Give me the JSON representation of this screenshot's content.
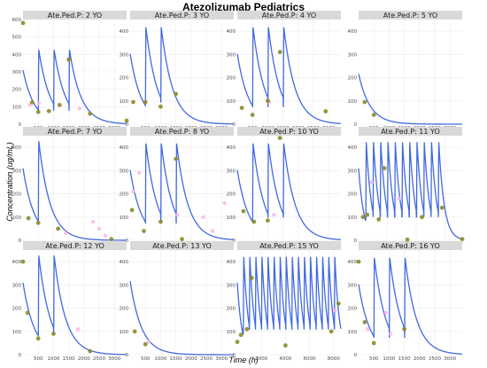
{
  "chart_data": {
    "type": "line",
    "title": "Atezolizumab Pediatrics",
    "xlabel": "Time (h)",
    "ylabel": "Concentration (ug/mL)",
    "colors": {
      "model_line": "#4169e1",
      "observed_points": "#8b8b2a",
      "simulated_points": "#ffb6e6",
      "strip_bg": "#d9d9d9"
    },
    "panels": [
      {
        "label": "Ate.Ped.P: 2 YO",
        "xlim": [
          0,
          3400
        ],
        "ylim": [
          0,
          600
        ],
        "xticks": [
          500,
          1000,
          1500,
          2000,
          2500,
          3000
        ],
        "yticks": [
          0,
          100,
          200,
          300,
          400,
          500,
          600
        ],
        "doses": [
          0,
          504,
          1008,
          1512
        ],
        "cmax": 430,
        "cmin": 80,
        "half_life": 260,
        "observed": [
          [
            0,
            580
          ],
          [
            300,
            125
          ],
          [
            500,
            70
          ],
          [
            850,
            75
          ],
          [
            1200,
            110
          ],
          [
            1500,
            370
          ],
          [
            2200,
            60
          ],
          [
            3400,
            20
          ]
        ],
        "simulated": [
          [
            220,
            110
          ],
          [
            520,
            120
          ],
          [
            1850,
            90
          ]
        ]
      },
      {
        "label": "Ate.Ped.P: 3 YO",
        "xlim": [
          0,
          3400
        ],
        "ylim": [
          0,
          450
        ],
        "xticks": [
          500,
          1000,
          1500,
          2000,
          2500,
          3000
        ],
        "yticks": [
          0,
          100,
          200,
          300,
          400
        ],
        "doses": [
          0,
          504,
          1008
        ],
        "cmax": 420,
        "cmin": 95,
        "half_life": 260,
        "observed": [
          [
            100,
            95
          ],
          [
            500,
            95
          ],
          [
            1000,
            75
          ],
          [
            1500,
            130
          ]
        ],
        "simulated": []
      },
      {
        "label": "Ate.Ped.P: 4 YO",
        "xlim": [
          0,
          3400
        ],
        "ylim": [
          0,
          450
        ],
        "xticks": [
          500,
          1000,
          1500,
          2000,
          2500,
          3000
        ],
        "yticks": [
          0,
          100,
          200,
          300,
          400
        ],
        "doses": [
          0,
          504,
          1008,
          1512
        ],
        "cmax": 420,
        "cmin": 75,
        "half_life": 260,
        "observed": [
          [
            150,
            70
          ],
          [
            500,
            40
          ],
          [
            1000,
            100
          ],
          [
            1400,
            310
          ],
          [
            2900,
            55
          ]
        ],
        "simulated": [
          [
            1050,
            95
          ]
        ]
      },
      {
        "label": "Ate.Ped.P: 5 YO",
        "xlim": [
          0,
          3400
        ],
        "ylim": [
          0,
          450
        ],
        "xticks": [
          500,
          1000,
          1500,
          2000,
          2500,
          3000
        ],
        "yticks": [
          0,
          100,
          200,
          300,
          400
        ],
        "doses": [
          0
        ],
        "cmax": 300,
        "cmin": 0,
        "half_life": 260,
        "observed": [
          [
            200,
            95
          ],
          [
            500,
            40
          ]
        ],
        "simulated": []
      },
      {
        "label": "Ate.Ped.P: 7 YO",
        "xlim": [
          0,
          3400
        ],
        "ylim": [
          0,
          450
        ],
        "xticks": [
          500,
          1000,
          1500,
          2000,
          2500,
          3000
        ],
        "yticks": [
          0,
          100,
          200,
          300,
          400
        ],
        "doses": [
          0,
          504
        ],
        "cmax": 430,
        "cmin": 85,
        "half_life": 260,
        "observed": [
          [
            180,
            95
          ],
          [
            500,
            75
          ],
          [
            1150,
            50
          ],
          [
            2900,
            5
          ]
        ],
        "simulated": [
          [
            1400,
            30
          ],
          [
            2300,
            80
          ],
          [
            2700,
            20
          ],
          [
            2500,
            50
          ]
        ]
      },
      {
        "label": "Ate.Ped.P: 8 YO",
        "xlim": [
          0,
          3400
        ],
        "ylim": [
          0,
          450
        ],
        "xticks": [
          500,
          1000,
          1500,
          2000,
          2500,
          3000
        ],
        "yticks": [
          0,
          100,
          200,
          300,
          400
        ],
        "doses": [
          0,
          504,
          1008,
          1512
        ],
        "cmax": 420,
        "cmin": 75,
        "half_life": 260,
        "observed": [
          [
            60,
            130
          ],
          [
            450,
            40
          ],
          [
            1000,
            80
          ],
          [
            1500,
            350
          ],
          [
            1700,
            5
          ]
        ],
        "simulated": [
          [
            100,
            210
          ],
          [
            300,
            290
          ],
          [
            1550,
            110
          ],
          [
            2400,
            100
          ],
          [
            2700,
            40
          ],
          [
            3100,
            160
          ]
        ]
      },
      {
        "label": "Ate.Ped.P: 10 YO",
        "xlim": [
          0,
          3400
        ],
        "ylim": [
          0,
          450
        ],
        "xticks": [
          500,
          1000,
          1500,
          2000,
          2500,
          3000
        ],
        "yticks": [
          0,
          100,
          200,
          300,
          400
        ],
        "doses": [
          0,
          504,
          1008,
          1512
        ],
        "cmax": 420,
        "cmin": 100,
        "half_life": 260,
        "observed": [
          [
            200,
            125
          ],
          [
            550,
            80
          ],
          [
            1000,
            85
          ],
          [
            1400,
            440
          ]
        ],
        "simulated": [
          [
            1200,
            110
          ]
        ]
      },
      {
        "label": "Ate.Ped.P: 11 YO",
        "xlim": [
          0,
          7200
        ],
        "ylim": [
          0,
          450
        ],
        "xticks": [
          2000,
          4000,
          6000
        ],
        "yticks": [
          0,
          100,
          200,
          300,
          400
        ],
        "doses": [
          0,
          504,
          1008,
          1512,
          2016,
          2520,
          3024,
          3528,
          4032,
          4536,
          5040,
          5544
        ],
        "cmax": 430,
        "cmin": 100,
        "half_life": 260,
        "observed": [
          [
            300,
            100
          ],
          [
            600,
            110
          ],
          [
            1400,
            90
          ],
          [
            1800,
            310
          ],
          [
            4400,
            100
          ],
          [
            5800,
            140
          ],
          [
            7200,
            5
          ]
        ],
        "simulated": [
          [
            900,
            250
          ],
          [
            2800,
            180
          ]
        ]
      },
      {
        "label": "Ate.Ped.P: 12 YO",
        "xlim": [
          0,
          3400
        ],
        "ylim": [
          0,
          450
        ],
        "xticks": [
          500,
          1000,
          1500,
          2000,
          2500,
          3000
        ],
        "yticks": [
          0,
          100,
          200,
          300,
          400
        ],
        "doses": [
          0,
          504,
          1008
        ],
        "cmax": 430,
        "cmin": 90,
        "half_life": 260,
        "observed": [
          [
            0,
            400
          ],
          [
            150,
            180
          ],
          [
            500,
            70
          ],
          [
            1000,
            90
          ],
          [
            2200,
            15
          ]
        ],
        "simulated": [
          [
            1800,
            110
          ]
        ]
      },
      {
        "label": "Ate.Ped.P: 13 YO",
        "xlim": [
          0,
          3400
        ],
        "ylim": [
          0,
          450
        ],
        "xticks": [
          500,
          1000,
          1500,
          2000,
          2500,
          3000
        ],
        "yticks": [
          0,
          100,
          200,
          300,
          400
        ],
        "doses": [
          0
        ],
        "cmax": 440,
        "cmin": 0,
        "half_life": 260,
        "observed": [
          [
            150,
            100
          ],
          [
            500,
            45
          ]
        ],
        "simulated": [
          [
            600,
            55
          ]
        ]
      },
      {
        "label": "Ate.Ped.P: 15 YO",
        "xlim": [
          0,
          8600
        ],
        "ylim": [
          0,
          450
        ],
        "xticks": [
          2000,
          4000,
          6000,
          8000
        ],
        "yticks": [
          0,
          100,
          200,
          300,
          400
        ],
        "doses": [
          0,
          504,
          1008,
          1512,
          2016,
          2520,
          3024,
          3528,
          4032,
          4536,
          5040,
          5544,
          6048,
          6552,
          7056,
          7560,
          8064
        ],
        "cmax": 430,
        "cmin": 110,
        "half_life": 260,
        "observed": [
          [
            0,
            55
          ],
          [
            300,
            85
          ],
          [
            800,
            110
          ],
          [
            1200,
            330
          ],
          [
            4000,
            40
          ],
          [
            7800,
            100
          ],
          [
            8400,
            220
          ]
        ],
        "simulated": [
          [
            8100,
            190
          ]
        ]
      },
      {
        "label": "Ate.Ped.P: 16 YO",
        "xlim": [
          0,
          3400
        ],
        "ylim": [
          0,
          450
        ],
        "xticks": [
          500,
          1000,
          1500,
          2000,
          2500,
          3000
        ],
        "yticks": [
          0,
          100,
          200,
          300,
          400
        ],
        "doses": [
          0,
          504,
          1008,
          1512
        ],
        "cmax": 420,
        "cmin": 75,
        "half_life": 260,
        "observed": [
          [
            0,
            400
          ],
          [
            200,
            140
          ],
          [
            500,
            50
          ],
          [
            1500,
            110
          ],
          [
            1600,
            495
          ]
        ],
        "simulated": [
          [
            300,
            110
          ],
          [
            900,
            180
          ],
          [
            1050,
            90
          ]
        ]
      }
    ]
  }
}
